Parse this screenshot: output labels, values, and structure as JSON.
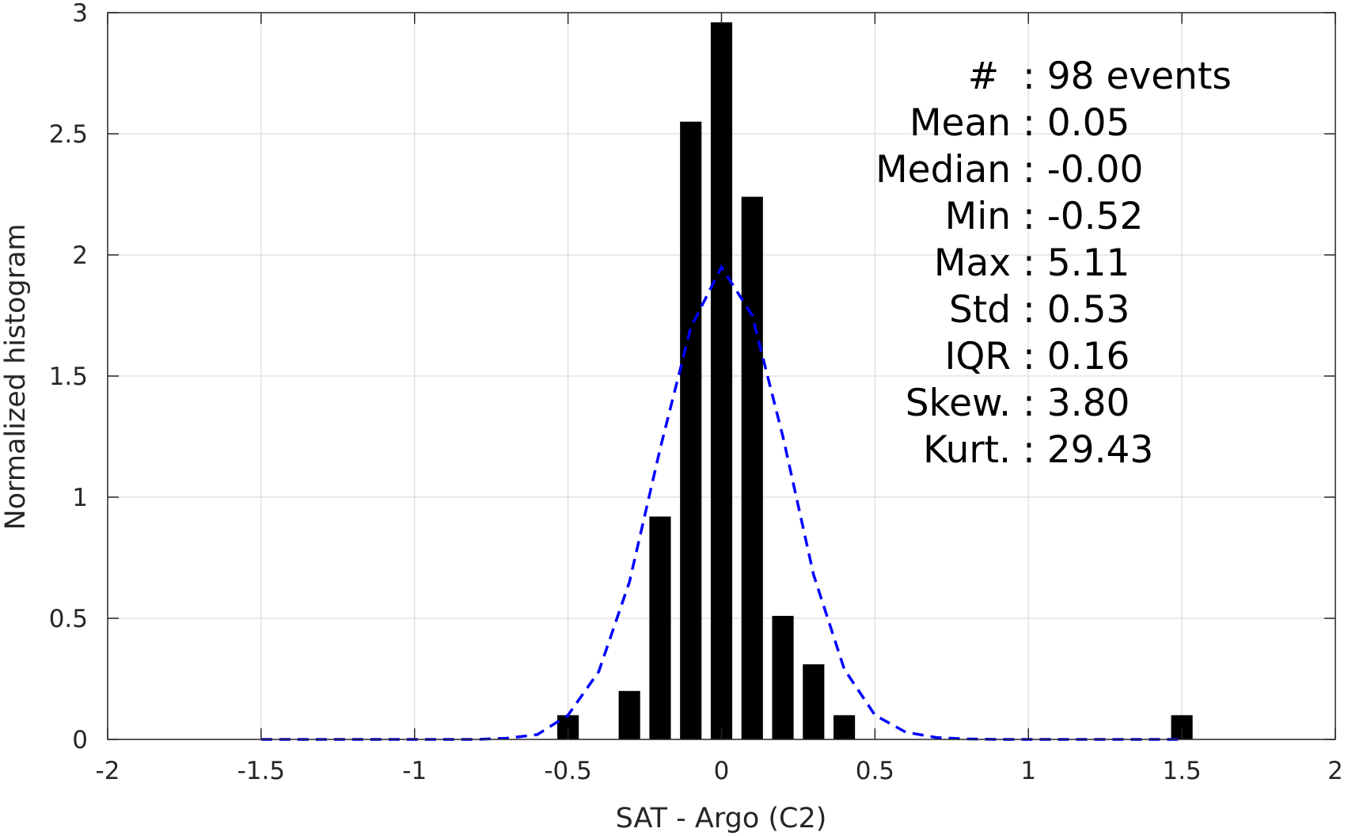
{
  "chart_data": {
    "type": "bar",
    "title": "",
    "xlabel": "SAT - Argo (C2)",
    "ylabel": "Normalized histogram",
    "xlim": [
      -2,
      2
    ],
    "ylim": [
      0,
      3
    ],
    "grid": true,
    "x_ticks": [
      -2,
      -1.5,
      -1,
      -0.5,
      0,
      0.5,
      1,
      1.5,
      2
    ],
    "x_tick_labels": [
      "-2",
      "-1.5",
      "-1",
      "-0.5",
      "0",
      "0.5",
      "1",
      "1.5",
      "2"
    ],
    "y_ticks": [
      0,
      0.5,
      1,
      1.5,
      2,
      2.5,
      3
    ],
    "y_tick_labels": [
      "0",
      "0.5",
      "1",
      "1.5",
      "2",
      "2.5",
      "3"
    ],
    "bar_width": 0.07,
    "bars": {
      "x": [
        -0.5,
        -0.3,
        -0.2,
        -0.1,
        0.0,
        0.1,
        0.2,
        0.3,
        0.4,
        1.5
      ],
      "values": [
        0.1,
        0.2,
        0.92,
        2.55,
        2.96,
        2.24,
        0.51,
        0.31,
        0.1,
        0.1
      ],
      "color": "#000000"
    },
    "fit_curve": {
      "style": "dashed",
      "color": "#0000ff",
      "x": [
        -1.5,
        -1.4,
        -1.3,
        -1.2,
        -1.1,
        -1.0,
        -0.9,
        -0.8,
        -0.7,
        -0.6,
        -0.5,
        -0.4,
        -0.3,
        -0.2,
        -0.1,
        0.0,
        0.1,
        0.2,
        0.3,
        0.4,
        0.5,
        0.6,
        0.7,
        0.8,
        0.9,
        1.0,
        1.1,
        1.2,
        1.3,
        1.4,
        1.5
      ],
      "y": [
        0.0,
        0.0,
        0.0,
        0.0,
        0.0,
        0.0,
        0.0,
        0.0,
        0.005,
        0.02,
        0.1,
        0.28,
        0.65,
        1.2,
        1.7,
        1.95,
        1.75,
        1.25,
        0.68,
        0.29,
        0.1,
        0.03,
        0.008,
        0.002,
        0.0,
        0.0,
        0.0,
        0.0,
        0.0,
        0.0,
        0.0
      ]
    },
    "stats_annotation": [
      "#  : 98 events",
      "Mean : 0.05",
      "Median : -0.00",
      "Min : -0.52",
      "Max : 5.11",
      "Std : 0.53",
      "IQR : 0.16",
      "Skew. : 3.80",
      "Kurt. : 29.43"
    ],
    "legend": "none"
  }
}
